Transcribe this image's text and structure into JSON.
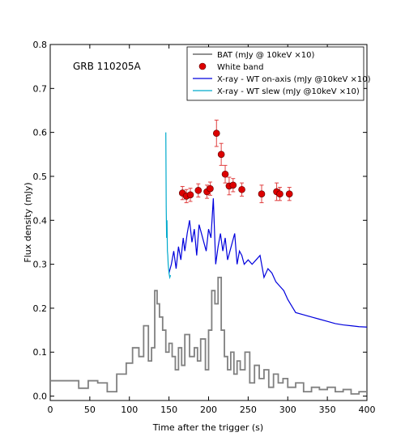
{
  "chart_data": {
    "type": "line",
    "annotation": "GRB 110205A",
    "xlabel": "Time after the trigger (s)",
    "ylabel": "Flux density (mJy)",
    "xlim": [
      0,
      400
    ],
    "ylim": [
      -0.01,
      0.8
    ],
    "xticks": [
      0,
      50,
      100,
      150,
      200,
      250,
      300,
      350,
      400
    ],
    "xtick_labels": [
      "0",
      "50",
      "100",
      "150",
      "200",
      "250",
      "300",
      "350",
      "400"
    ],
    "yticks": [
      0.0,
      0.1,
      0.2,
      0.3,
      0.4,
      0.5,
      0.6,
      0.7,
      0.8
    ],
    "ytick_labels": [
      "0.0",
      "0.1",
      "0.2",
      "0.3",
      "0.4",
      "0.5",
      "0.6",
      "0.7",
      "0.8"
    ],
    "grid": false,
    "legend_position": "top-right",
    "series": [
      {
        "name": "BAT (mJy @ 10keV ×10)",
        "kind": "step",
        "color": "#808080",
        "x": [
          0,
          12,
          24,
          36,
          48,
          60,
          72,
          84,
          96,
          104,
          112,
          118,
          124,
          128,
          132,
          135,
          138,
          142,
          146,
          150,
          154,
          158,
          162,
          166,
          170,
          176,
          182,
          186,
          190,
          196,
          200,
          204,
          208,
          212,
          216,
          220,
          224,
          228,
          232,
          236,
          240,
          246,
          252,
          258,
          264,
          270,
          276,
          282,
          288,
          294,
          300,
          310,
          320,
          330,
          340,
          350,
          360,
          370,
          380,
          390,
          400
        ],
        "y": [
          0.035,
          0.035,
          0.035,
          0.018,
          0.035,
          0.03,
          0.01,
          0.05,
          0.075,
          0.11,
          0.09,
          0.16,
          0.08,
          0.11,
          0.24,
          0.21,
          0.18,
          0.15,
          0.1,
          0.12,
          0.09,
          0.06,
          0.11,
          0.07,
          0.14,
          0.09,
          0.11,
          0.08,
          0.13,
          0.06,
          0.15,
          0.24,
          0.21,
          0.27,
          0.15,
          0.09,
          0.06,
          0.1,
          0.05,
          0.08,
          0.06,
          0.1,
          0.03,
          0.07,
          0.04,
          0.06,
          0.02,
          0.05,
          0.03,
          0.04,
          0.02,
          0.03,
          0.01,
          0.02,
          0.015,
          0.02,
          0.01,
          0.015,
          0.005,
          0.01,
          0.01
        ]
      },
      {
        "name": "White band",
        "kind": "scatter_err",
        "color": "#dd0000",
        "error_color": "#e04040",
        "x": [
          167,
          172,
          177,
          187,
          198,
          202,
          210,
          216,
          221,
          226,
          231,
          242,
          267,
          286,
          290,
          302
        ],
        "y": [
          0.462,
          0.455,
          0.458,
          0.468,
          0.465,
          0.472,
          0.598,
          0.55,
          0.505,
          0.478,
          0.48,
          0.47,
          0.46,
          0.465,
          0.46,
          0.46
        ],
        "err": [
          0.015,
          0.015,
          0.015,
          0.015,
          0.015,
          0.015,
          0.03,
          0.025,
          0.02,
          0.02,
          0.015,
          0.015,
          0.02,
          0.02,
          0.015,
          0.015
        ]
      },
      {
        "name": "X-ray - WT on-axis (mJy @10keV ×10)",
        "kind": "line",
        "color": "#0000dd",
        "x": [
          150,
          153,
          156,
          159,
          162,
          165,
          168,
          170,
          173,
          176,
          179,
          182,
          185,
          188,
          191,
          194,
          197,
          200,
          203,
          206,
          209,
          212,
          215,
          218,
          221,
          224,
          227,
          230,
          233,
          236,
          239,
          242,
          245,
          250,
          255,
          260,
          265,
          270,
          275,
          280,
          285,
          290,
          295,
          300,
          310,
          320,
          330,
          340,
          350,
          360,
          370,
          380,
          390,
          400
        ],
        "y": [
          0.28,
          0.3,
          0.33,
          0.29,
          0.34,
          0.31,
          0.36,
          0.33,
          0.37,
          0.4,
          0.35,
          0.38,
          0.32,
          0.39,
          0.37,
          0.35,
          0.33,
          0.38,
          0.36,
          0.45,
          0.3,
          0.34,
          0.37,
          0.33,
          0.36,
          0.31,
          0.33,
          0.35,
          0.37,
          0.3,
          0.33,
          0.32,
          0.3,
          0.31,
          0.3,
          0.31,
          0.32,
          0.27,
          0.29,
          0.28,
          0.26,
          0.25,
          0.24,
          0.22,
          0.19,
          0.185,
          0.18,
          0.175,
          0.17,
          0.165,
          0.162,
          0.16,
          0.158,
          0.157
        ]
      },
      {
        "name": "X-ray - WT slew (mJy @10keV ×10)",
        "kind": "line",
        "color": "#00aacc",
        "x": [
          146,
          146.5,
          147,
          147.5,
          148,
          148.5,
          149,
          149.5,
          150,
          151,
          152
        ],
        "y": [
          0.6,
          0.43,
          0.36,
          0.4,
          0.33,
          0.32,
          0.3,
          0.29,
          0.28,
          0.27,
          0.275
        ]
      }
    ]
  }
}
